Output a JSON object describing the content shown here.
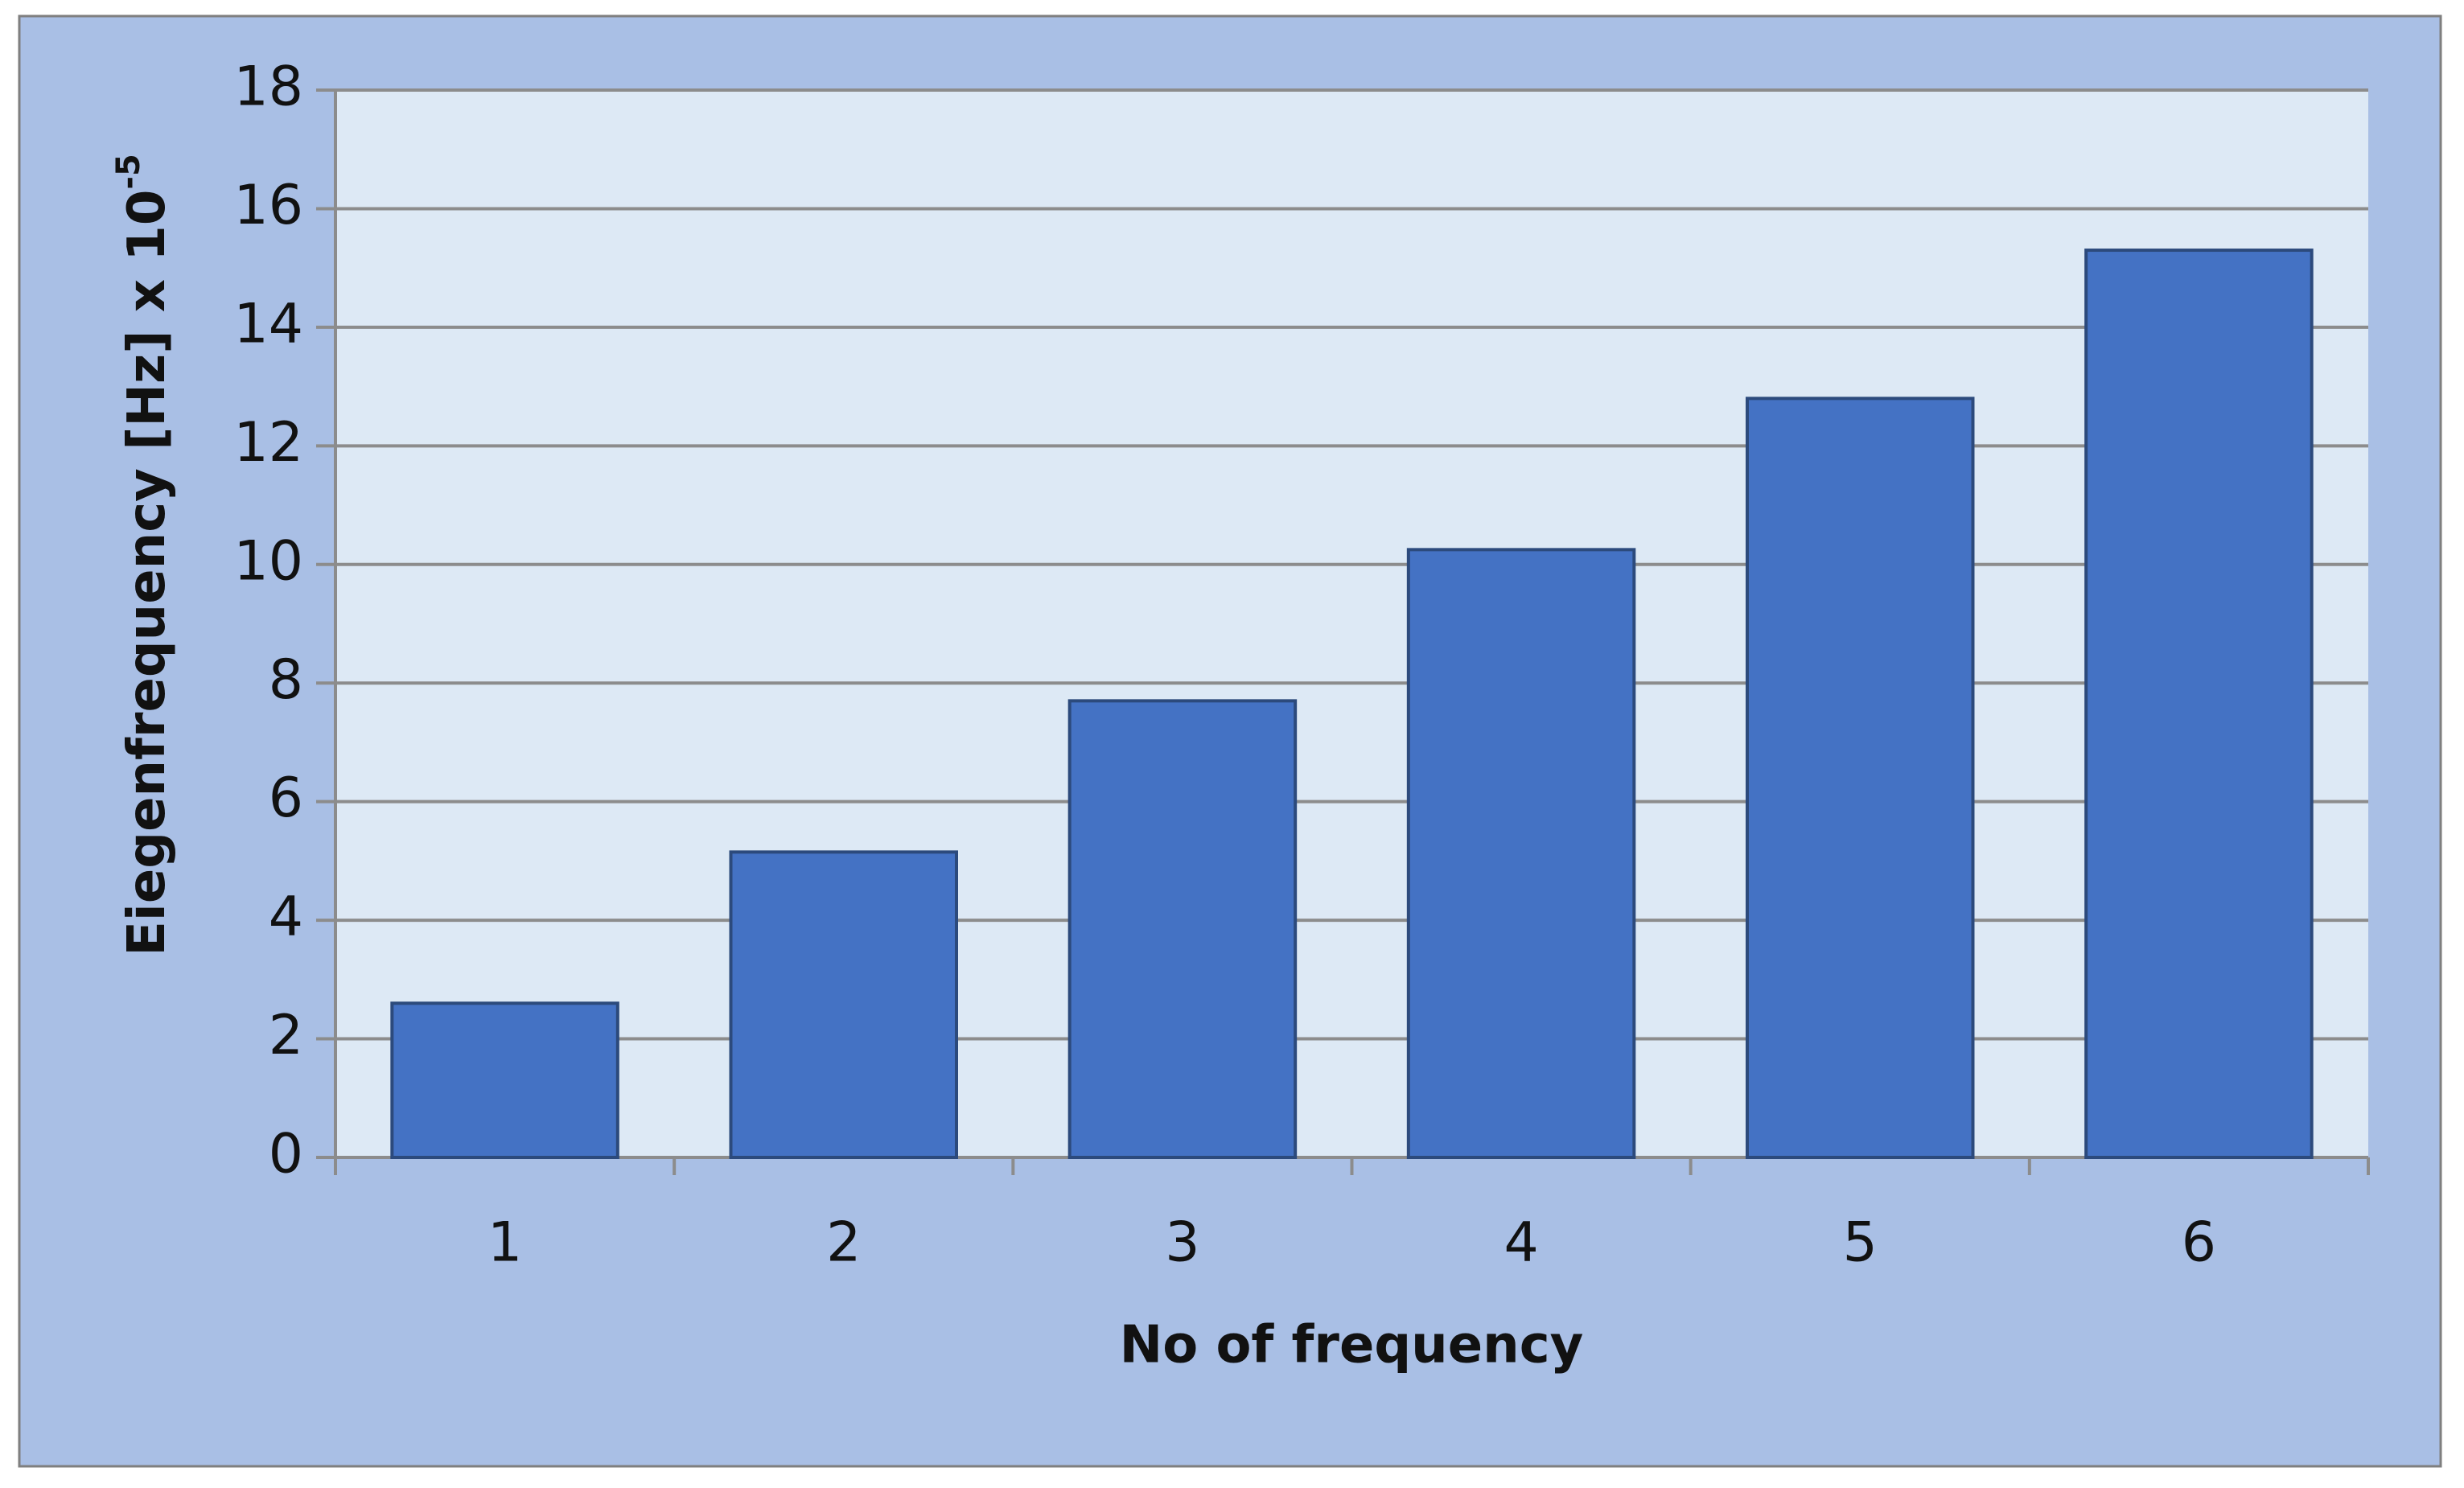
{
  "chart_data": {
    "type": "bar",
    "x_label": "No of frequency",
    "y_label": "Eiegenfrequency [Hz] x 10",
    "y_label_superscript": "-5",
    "categories": [
      "1",
      "2",
      "3",
      "4",
      "5",
      "6"
    ],
    "values": [
      2.6,
      5.15,
      7.7,
      10.25,
      12.8,
      15.3
    ],
    "color": "#4472c4",
    "ylim": [
      0,
      18
    ],
    "yticks": [
      0,
      2,
      4,
      6,
      8,
      10,
      12,
      14,
      16,
      18
    ],
    "grid": true
  }
}
